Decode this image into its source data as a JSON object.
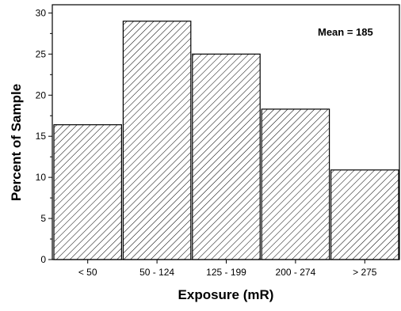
{
  "chart_data": {
    "type": "bar",
    "title": "",
    "annotation": "Mean = 185",
    "xlabel": "Exposure (mR)",
    "ylabel": "Percent of Sample",
    "categories": [
      "< 50",
      "50 - 124",
      "125 - 199",
      "200 - 274",
      "> 275"
    ],
    "values": [
      16.4,
      29.0,
      25.0,
      18.3,
      10.9
    ],
    "ylim": [
      0,
      31
    ],
    "yticks": [
      0,
      5,
      10,
      15,
      20,
      25,
      30
    ],
    "grid": false,
    "legend": "none",
    "bar_fill": "diagonal-hatch",
    "colors": {
      "bar_stroke": "#000000",
      "hatch": "#000000",
      "background": "#ffffff"
    }
  }
}
